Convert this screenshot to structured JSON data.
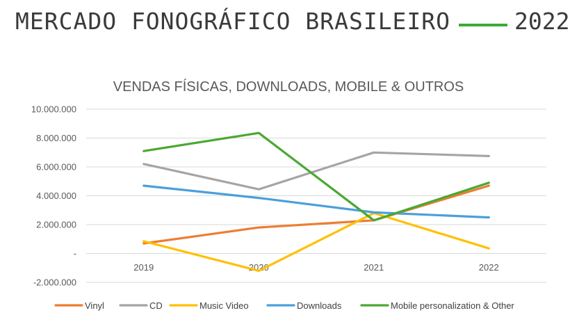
{
  "header": {
    "title": "Mercado Fonográfico Brasileiro",
    "year": "2022",
    "accent_color": "#3aaa35"
  },
  "chart_data": {
    "type": "line",
    "title": "VENDAS FÍSICAS, DOWNLOADS, MOBILE & OUTROS",
    "xlabel": "",
    "ylabel": "",
    "categories": [
      "2019",
      "2020",
      "2021",
      "2022"
    ],
    "ylim": [
      -2000000,
      10000000
    ],
    "yticks": [
      {
        "value": 10000000,
        "label": "10.000.000"
      },
      {
        "value": 8000000,
        "label": "8.000.000"
      },
      {
        "value": 6000000,
        "label": "6.000.000"
      },
      {
        "value": 4000000,
        "label": "4.000.000"
      },
      {
        "value": 2000000,
        "label": "2.000.000"
      },
      {
        "value": 0,
        "label": "-"
      },
      {
        "value": -2000000,
        "label": "-2.000.000"
      }
    ],
    "grid": true,
    "legend": "bottom",
    "series": [
      {
        "name": "Vinyl",
        "color": "#ed7d31",
        "values": [
          700000,
          1800000,
          2300000,
          4700000
        ]
      },
      {
        "name": "CD",
        "color": "#a5a5a5",
        "values": [
          6200000,
          4450000,
          7000000,
          6750000
        ]
      },
      {
        "name": "Music Video",
        "color": "#ffc000",
        "values": [
          850000,
          -1200000,
          2800000,
          350000
        ]
      },
      {
        "name": "Downloads",
        "color": "#4a9fdc",
        "values": [
          4700000,
          3850000,
          2850000,
          2500000
        ]
      },
      {
        "name": "Mobile personalization & Other",
        "color": "#4aa832",
        "values": [
          7100000,
          8350000,
          2300000,
          4900000
        ]
      }
    ]
  }
}
